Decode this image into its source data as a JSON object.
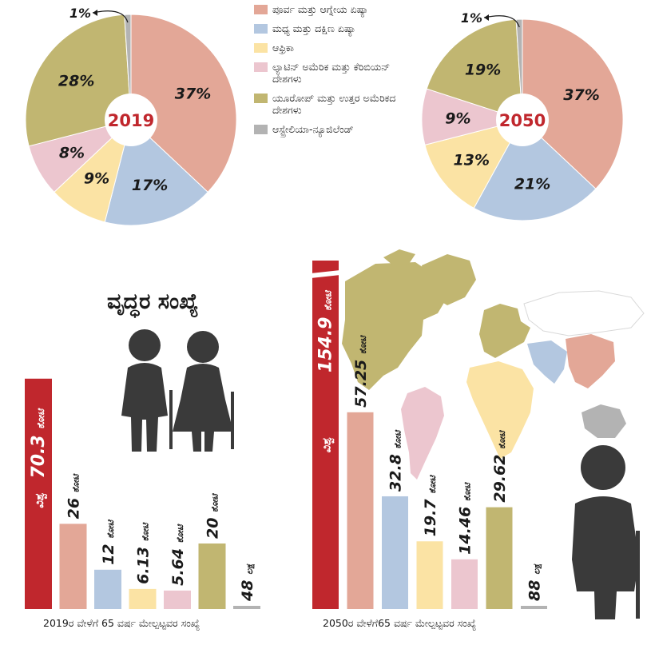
{
  "colors": {
    "east_asia": "#e3a797",
    "south_asia": "#b3c7e0",
    "africa": "#fbe3a4",
    "latin_america": "#ecc6cf",
    "europe_na": "#c1b671",
    "oceania": "#b3b3b3",
    "world": "#c0272d",
    "person": "#3a3a3a"
  },
  "legend": [
    {
      "name": "ಪೂರ್ವ ಮತ್ತು ಆಗ್ನೇಯ ಏಷ್ಯಾ",
      "color": "#e3a797"
    },
    {
      "name": "ಮಧ್ಯ ಮತ್ತು ದಕ್ಷಿಣ ಏಷ್ಯಾ",
      "color": "#b3c7e0"
    },
    {
      "name": "ಆಫ್ರಿಕಾ",
      "color": "#fbe3a4"
    },
    {
      "name": "ಲ್ಯಾಟಿನ್ ಅಮೆರಿಕ ಮತ್ತು ಕೆರಿಬಿಯನ್ ದೇಶಗಳು",
      "color": "#ecc6cf"
    },
    {
      "name": "ಯೂರೋಪ್ ಮತ್ತು ಉತ್ತರ ಅಮೆರಿಕದ ದೇಶಗಳು",
      "color": "#c1b671"
    },
    {
      "name": "ಆಸ್ಟ್ರೇಲಿಯಾ-ನ್ಯೂಜಿಲೆಂಡ್",
      "color": "#b3b3b3"
    }
  ],
  "title_elderly": "ವೃದ್ಧರ ಸಂಖ್ಯೆ",
  "chart_data": [
    {
      "type": "pie",
      "center_label": "2019",
      "slices": [
        {
          "name": "ಪೂರ್ವ ಮತ್ತು ಆಗ್ನೇಯ ಏಷ್ಯಾ",
          "value": 37,
          "label": "37%"
        },
        {
          "name": "ಮಧ್ಯ ಮತ್ತು ದಕ್ಷಿಣ ಏಷ್ಯಾ",
          "value": 17,
          "label": "17%"
        },
        {
          "name": "ಆಫ್ರಿಕಾ",
          "value": 9,
          "label": "9%"
        },
        {
          "name": "ಲ್ಯಾಟಿನ್ ಅಮೆರಿಕ ಮತ್ತು ಕೆರಿಬಿಯನ್ ದೇಶಗಳು",
          "value": 8,
          "label": "8%"
        },
        {
          "name": "ಯೂರೋಪ್ ಮತ್ತು ಉತ್ತರ ಅಮೆರಿಕದ ದೇಶಗಳು",
          "value": 28,
          "label": "28%"
        },
        {
          "name": "ಆಸ್ಟ್ರೇಲಿಯಾ-ನ್ಯೂಜಿಲೆಂಡ್",
          "value": 1,
          "label": "1%"
        }
      ]
    },
    {
      "type": "pie",
      "center_label": "2050",
      "slices": [
        {
          "name": "ಪೂರ್ವ ಮತ್ತು ಆಗ್ನೇಯ ಏಷ್ಯಾ",
          "value": 37,
          "label": "37%"
        },
        {
          "name": "ಮಧ್ಯ ಮತ್ತು ದಕ್ಷಿಣ ಏಷ್ಯಾ",
          "value": 21,
          "label": "21%"
        },
        {
          "name": "ಆಫ್ರಿಕಾ",
          "value": 13,
          "label": "13%"
        },
        {
          "name": "ಲ್ಯಾಟಿನ್ ಅಮೆರಿಕ ಮತ್ತು ಕೆರಿಬಿಯನ್ ದೇಶಗಳು",
          "value": 9,
          "label": "9%"
        },
        {
          "name": "ಯೂರೋಪ್ ಮತ್ತು ಉತ್ತರ ಅಮೆರಿಕದ ದೇಶಗಳು",
          "value": 19,
          "label": "19%"
        },
        {
          "name": "ಆಸ್ಟ್ರೇಲಿಯಾ-ನ್ಯೂಜಿಲೆಂಡ್",
          "value": 1,
          "label": "1%"
        }
      ]
    },
    {
      "type": "bar",
      "caption": "2019ರ ವೇಳೆಗೆ 65 ವರ್ಷ ಮೇಲ್ಪಟ್ಟವರ ಸಂಖ್ಯೆ",
      "bars": [
        {
          "name": "ವಿಶ್ವ",
          "value": 70.3,
          "label": "70.3",
          "unit": "ಕೋಟಿ",
          "inside_label": "ವಿಶ್ವ",
          "color": "#c0272d"
        },
        {
          "name": "ಪೂರ್ವ ಮತ್ತು ಆಗ್ನೇಯ ಏಷ್ಯಾ",
          "value": 26,
          "label": "26",
          "unit": "ಕೋಟಿ",
          "color": "#e3a797"
        },
        {
          "name": "ಮಧ್ಯ ಮತ್ತು ದಕ್ಷಿಣ ಏಷ್ಯಾ",
          "value": 12,
          "label": "12",
          "unit": "ಕೋಟಿ",
          "color": "#b3c7e0"
        },
        {
          "name": "ಆಫ್ರಿಕಾ",
          "value": 6.13,
          "label": "6.13",
          "unit": "ಕೋಟಿ",
          "color": "#fbe3a4"
        },
        {
          "name": "ಲ್ಯಾಟಿನ್ ಅಮೆರಿಕ ಮತ್ತು ಕೆರಿಬಿಯನ್ ದೇಶಗಳು",
          "value": 5.64,
          "label": "5.64",
          "unit": "ಕೋಟಿ",
          "color": "#ecc6cf"
        },
        {
          "name": "ಯೂರೋಪ್ ಮತ್ತು ಉತ್ತರ ಅಮೆರಿಕದ ದೇಶಗಳು",
          "value": 20,
          "label": "20",
          "unit": "ಕೋಟಿ",
          "color": "#c1b671"
        },
        {
          "name": "ಆಸ್ಟ್ರೇಲಿಯಾ-ನ್ಯೂಜಿಲೆಂಡ್",
          "value": 0.48,
          "label": "48",
          "unit": "ಲಕ್ಷ",
          "color": "#b3b3b3"
        }
      ]
    },
    {
      "type": "bar",
      "caption": "2050ರ ವೇಳೆಗೆ65 ವರ್ಷ ಮೇಲ್ಪಟ್ಟವರ ಸಂಖ್ಯೆ",
      "bars": [
        {
          "name": "ವಿಶ್ವ",
          "value": 154.9,
          "label": "154.9",
          "unit": "ಕೋಟಿ",
          "inside_label": "ವಿಶ್ವ",
          "color": "#c0272d",
          "broken": true
        },
        {
          "name": "ಪೂರ್ವ ಮತ್ತು ಆಗ್ನೇಯ ಏಷ್ಯಾ",
          "value": 57.25,
          "label": "57.25",
          "unit": "ಕೋಟಿ",
          "color": "#e3a797"
        },
        {
          "name": "ಮಧ್ಯ ಮತ್ತು ದಕ್ಷಿಣ ಏಷ್ಯಾ",
          "value": 32.8,
          "label": "32.8",
          "unit": "ಕೋಟಿ",
          "color": "#b3c7e0"
        },
        {
          "name": "ಆಫ್ರಿಕಾ",
          "value": 19.7,
          "label": "19.7",
          "unit": "ಕೋಟಿ",
          "color": "#fbe3a4"
        },
        {
          "name": "ಲ್ಯಾಟಿನ್ ಅಮೆರಿಕ ಮತ್ತು ಕೆರಿಬಿಯನ್ ದೇಶಗಳು",
          "value": 14.46,
          "label": "14.46",
          "unit": "ಕೋಟಿ",
          "color": "#ecc6cf"
        },
        {
          "name": "ಯೂರೋಪ್ ಮತ್ತು ಉತ್ತರ ಅಮೆರಿಕದ ದೇಶಗಳು",
          "value": 29.62,
          "label": "29.62",
          "unit": "ಕೋಟಿ",
          "color": "#c1b671"
        },
        {
          "name": "ಆಸ್ಟ್ರೇಲಿಯಾ-ನ್ಯೂಜಿಲೆಂಡ್",
          "value": 0.88,
          "label": "88",
          "unit": "ಲಕ್ಷ",
          "color": "#b3b3b3"
        }
      ]
    }
  ]
}
